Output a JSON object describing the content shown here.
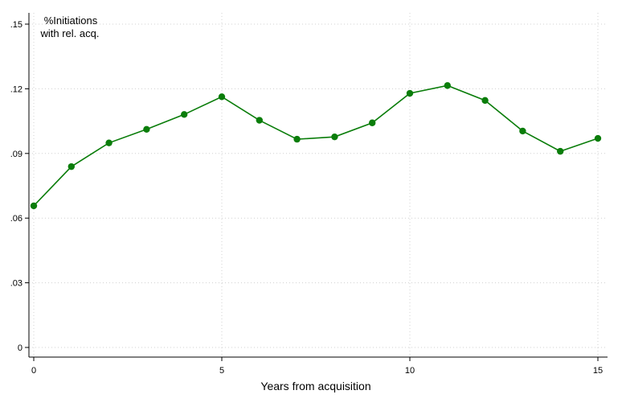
{
  "chart_data": {
    "type": "line",
    "xlabel": "Years from acquisition",
    "ylabel_lines": [
      "%Initiations",
      "with rel. acq."
    ],
    "x_ticks": [
      {
        "value": 0,
        "label": "0"
      },
      {
        "value": 5,
        "label": "5"
      },
      {
        "value": 10,
        "label": "10"
      },
      {
        "value": 15,
        "label": "15"
      }
    ],
    "y_ticks": [
      {
        "value": 0,
        "label": "0"
      },
      {
        "value": 0.03,
        "label": ".03"
      },
      {
        "value": 0.06,
        "label": ".06"
      },
      {
        "value": 0.09,
        "label": ".09"
      },
      {
        "value": 0.12,
        "label": ".12"
      },
      {
        "value": 0.15,
        "label": ".15"
      }
    ],
    "xlim": [
      0,
      15
    ],
    "ylim": [
      0,
      0.15
    ],
    "grid": true,
    "series": [
      {
        "color": "#0a7d0a",
        "x": [
          0,
          1,
          2,
          3,
          4,
          5,
          6,
          7,
          8,
          9,
          10,
          11,
          12,
          13,
          14,
          15
        ],
        "values": [
          0.0657,
          0.0839,
          0.0949,
          0.1012,
          0.1081,
          0.1163,
          0.1054,
          0.0966,
          0.0977,
          0.1042,
          0.1179,
          0.1215,
          0.1146,
          0.1004,
          0.091,
          0.097
        ]
      }
    ]
  }
}
